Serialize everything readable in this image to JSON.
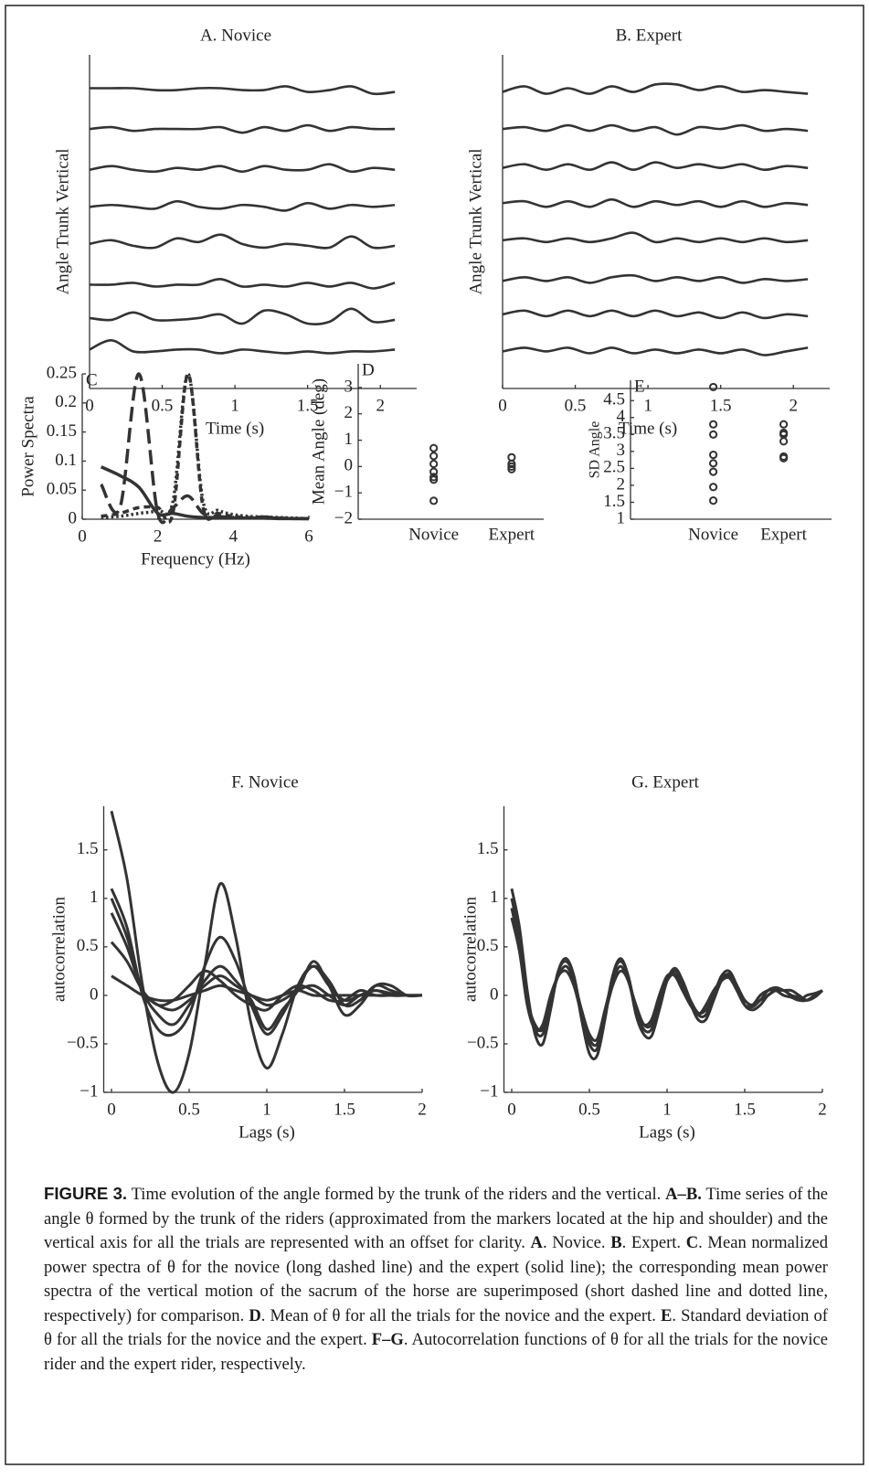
{
  "chart_data": [
    {
      "type": "line",
      "title": "A. Novice",
      "ylabel": "Angle Trunk Vertical",
      "xlabel": "Time (s)",
      "xlim": [
        0,
        2.25
      ],
      "xticks": [
        0,
        0.5,
        1,
        1.5,
        2
      ],
      "ylim": [
        0,
        9
      ],
      "color": "#333",
      "x": [
        0,
        0.15,
        0.3,
        0.45,
        0.6,
        0.75,
        0.9,
        1.05,
        1.2,
        1.35,
        1.5,
        1.65,
        1.8,
        1.95,
        2.1
      ],
      "series": [
        {
          "values": [
            8.1,
            8.1,
            8.1,
            8.05,
            8.05,
            8.1,
            8.1,
            8.05,
            8.05,
            8.15,
            8.0,
            8.05,
            8.15,
            7.95,
            8.0
          ]
        },
        {
          "values": [
            7.0,
            7.05,
            6.95,
            7.0,
            7.0,
            7.0,
            7.05,
            6.9,
            7.05,
            6.95,
            7.1,
            6.95,
            7.05,
            7.0,
            7.0
          ]
        },
        {
          "values": [
            5.9,
            6.0,
            5.9,
            5.85,
            5.95,
            5.9,
            6.0,
            5.85,
            6.0,
            5.9,
            5.9,
            6.05,
            5.85,
            5.95,
            5.9
          ]
        },
        {
          "values": [
            4.9,
            4.95,
            4.9,
            4.85,
            5.05,
            4.9,
            4.85,
            4.95,
            4.9,
            4.8,
            5.0,
            4.85,
            4.95,
            4.9,
            4.95
          ]
        },
        {
          "values": [
            3.9,
            4.0,
            3.85,
            3.8,
            4.05,
            3.95,
            4.15,
            3.9,
            3.8,
            3.9,
            3.85,
            3.8,
            4.1,
            3.8,
            3.85
          ]
        },
        {
          "values": [
            2.8,
            2.8,
            2.85,
            2.75,
            2.8,
            2.8,
            2.95,
            2.75,
            2.8,
            2.75,
            2.85,
            2.75,
            2.85,
            2.7,
            2.85
          ]
        },
        {
          "values": [
            1.9,
            1.85,
            2.05,
            1.85,
            1.85,
            1.9,
            2.0,
            1.75,
            2.1,
            2.0,
            1.75,
            1.8,
            2.15,
            1.8,
            1.85
          ]
        },
        {
          "values": [
            1.05,
            1.3,
            1.0,
            1.0,
            1.05,
            1.05,
            0.95,
            1.05,
            1.0,
            0.95,
            1.0,
            0.95,
            1.0,
            1.0,
            1.05
          ]
        }
      ]
    },
    {
      "type": "line",
      "title": "B. Expert",
      "ylabel": "Angle Trunk Vertical",
      "xlabel": "Time (s)",
      "xlim": [
        0,
        2.25
      ],
      "xticks": [
        0,
        0.5,
        1,
        1.5,
        2
      ],
      "ylim": [
        0,
        9
      ],
      "color": "#333",
      "x": [
        0,
        0.15,
        0.3,
        0.45,
        0.6,
        0.75,
        0.9,
        1.05,
        1.2,
        1.35,
        1.5,
        1.65,
        1.8,
        1.95,
        2.1
      ],
      "series": [
        {
          "values": [
            8.0,
            8.15,
            7.95,
            8.1,
            7.95,
            8.15,
            8.0,
            8.2,
            8.2,
            8.05,
            8.15,
            8.0,
            8.05,
            8.0,
            7.95
          ]
        },
        {
          "values": [
            7.0,
            7.05,
            6.95,
            7.1,
            6.95,
            7.1,
            6.95,
            7.05,
            6.85,
            7.05,
            7.0,
            7.1,
            6.95,
            7.0,
            6.95
          ]
        },
        {
          "values": [
            5.95,
            6.05,
            5.9,
            6.05,
            5.9,
            6.1,
            5.9,
            6.1,
            5.95,
            6.05,
            5.95,
            6.05,
            5.9,
            6.0,
            5.95
          ]
        },
        {
          "values": [
            5.0,
            5.05,
            4.9,
            5.05,
            4.9,
            5.1,
            4.9,
            5.05,
            4.95,
            5.05,
            4.9,
            5.05,
            4.9,
            5.0,
            4.95
          ]
        },
        {
          "values": [
            4.0,
            4.05,
            3.95,
            4.05,
            3.95,
            4.05,
            4.2,
            3.95,
            4.05,
            3.95,
            4.05,
            3.95,
            4.05,
            3.95,
            4.0
          ]
        },
        {
          "values": [
            2.9,
            3.0,
            2.9,
            3.0,
            2.85,
            3.0,
            3.05,
            2.9,
            3.0,
            2.9,
            3.0,
            2.85,
            2.95,
            2.9,
            2.95
          ]
        },
        {
          "values": [
            2.0,
            2.1,
            1.95,
            2.1,
            1.95,
            2.1,
            1.95,
            2.1,
            1.95,
            2.05,
            1.9,
            2.05,
            1.9,
            2.0,
            1.95
          ]
        },
        {
          "values": [
            1.0,
            1.1,
            1.0,
            1.1,
            0.95,
            1.1,
            0.95,
            1.05,
            0.95,
            1.05,
            0.95,
            1.05,
            0.9,
            1.0,
            1.1
          ]
        }
      ]
    },
    {
      "type": "line",
      "label": "C",
      "ylabel": "Power Spectra",
      "xlabel": "Frequency (Hz)",
      "xlim": [
        0,
        6
      ],
      "xticks": [
        0,
        2,
        4,
        6
      ],
      "ylim": [
        0,
        0.25
      ],
      "yticks": [
        0,
        0.05,
        0.1,
        0.15,
        0.2,
        0.25
      ],
      "color": "#333",
      "x": [
        0.5,
        1,
        1.5,
        2,
        2.4,
        2.8,
        3.2,
        3.6,
        4,
        4.4,
        4.8,
        5.2,
        5.6,
        6
      ],
      "series": [
        {
          "dash": "long",
          "values": [
            0.06,
            0.02,
            0.25,
            0.01,
            0.02,
            0.04,
            0.01,
            0.005,
            0.003,
            0.002,
            0.004,
            0.002,
            0.001,
            0.001
          ]
        },
        {
          "dash": "solid",
          "values": [
            0.09,
            0.075,
            0.055,
            0.01,
            0.01,
            0.005,
            0.003,
            0.003,
            0.002,
            0.002,
            0.002,
            0.001,
            0.001,
            0.001
          ]
        },
        {
          "dash": "short",
          "values": [
            0.005,
            0.01,
            0.02,
            0.02,
            0.01,
            0.25,
            0.02,
            0.01,
            0.005,
            0.003,
            0.002,
            0.002,
            0.001,
            0.001
          ]
        },
        {
          "dash": "dotted",
          "values": [
            0.003,
            0.005,
            0.01,
            0.015,
            0.03,
            0.25,
            0.03,
            0.015,
            0.008,
            0.005,
            0.004,
            0.003,
            0.002,
            0.001
          ]
        }
      ]
    },
    {
      "type": "scatter",
      "label": "D",
      "ylabel": "Mean Angle (deg)",
      "color": "#333",
      "categories": [
        "Novice",
        "Expert"
      ],
      "ylim": [
        -2,
        3.9
      ],
      "yticks": [
        {
          "value": -2,
          "label": "−2"
        },
        {
          "value": -1,
          "label": "−1"
        },
        0,
        1,
        2,
        3
      ],
      "values": [
        [
          0.7,
          0.4,
          0.1,
          -0.2,
          -0.4,
          -0.5,
          -1.3
        ],
        [
          0.35,
          0.1,
          0,
          -0.1
        ]
      ]
    },
    {
      "type": "scatter",
      "label": "E",
      "ylabel": "SD Angle",
      "color": "#333",
      "categories": [
        "Novice",
        "Expert"
      ],
      "ylim": [
        1,
        5.1
      ],
      "yticks": [
        1,
        1.5,
        2,
        2.5,
        3,
        3.5,
        4,
        4.5
      ],
      "values": [
        [
          4.9,
          3.8,
          3.5,
          2.9,
          2.65,
          2.4,
          1.95,
          1.55
        ],
        [
          3.8,
          3.55,
          3.5,
          3.3,
          2.85,
          2.8
        ]
      ]
    },
    {
      "type": "line",
      "title": "F. Novice",
      "ylabel": "autocorrelation",
      "xlabel": "Lags (s)",
      "xlim": [
        -0.05,
        2
      ],
      "xticks": [
        0,
        0.5,
        1,
        1.5,
        2
      ],
      "ylim": [
        -1,
        1.95
      ],
      "yticks": [
        {
          "value": -1,
          "label": "−1"
        },
        {
          "value": -0.5,
          "label": "−0.5"
        },
        0,
        0.5,
        1,
        1.5
      ],
      "color": "#333",
      "x": [
        0,
        0.1,
        0.2,
        0.3,
        0.4,
        0.5,
        0.6,
        0.7,
        0.8,
        0.9,
        1,
        1.1,
        1.2,
        1.3,
        1.4,
        1.5,
        1.6,
        1.7,
        1.8,
        1.9,
        2
      ],
      "series": [
        {
          "values": [
            1.9,
            1.2,
            0.1,
            -0.7,
            -1.0,
            -0.6,
            0.3,
            1.15,
            0.6,
            -0.3,
            -0.75,
            -0.4,
            0.1,
            0.3,
            0.1,
            -0.05,
            0,
            0.05,
            0.02,
            0,
            0
          ]
        },
        {
          "values": [
            1.1,
            0.7,
            0,
            -0.35,
            -0.4,
            -0.2,
            0.3,
            0.6,
            0.35,
            -0.1,
            -0.4,
            -0.2,
            0.1,
            0.3,
            0.15,
            -0.1,
            -0.05,
            0.1,
            0.05,
            0,
            0
          ]
        },
        {
          "values": [
            1.0,
            0.6,
            0.05,
            -0.2,
            -0.3,
            -0.1,
            0.15,
            0.3,
            0.15,
            -0.05,
            -0.35,
            -0.15,
            0.05,
            0.35,
            0.1,
            -0.2,
            -0.1,
            0.1,
            0.1,
            0,
            0
          ]
        },
        {
          "values": [
            0.85,
            0.5,
            0.05,
            -0.1,
            -0.15,
            -0.05,
            0.1,
            0.2,
            0.1,
            0,
            -0.1,
            -0.05,
            0.05,
            0.1,
            0,
            -0.1,
            0,
            0.05,
            0,
            0,
            0
          ]
        },
        {
          "values": [
            0.55,
            0.35,
            0.05,
            -0.1,
            -0.05,
            0.1,
            0.25,
            0.15,
            0,
            -0.1,
            -0.15,
            0,
            0.1,
            0.05,
            -0.05,
            -0.05,
            0.05,
            0,
            0,
            0,
            0
          ]
        },
        {
          "values": [
            0.2,
            0.1,
            0,
            -0.05,
            -0.05,
            0,
            0.05,
            0.1,
            0.05,
            0,
            -0.05,
            0,
            0.05,
            0,
            0,
            0,
            0,
            0,
            0,
            0,
            0
          ]
        }
      ]
    },
    {
      "type": "line",
      "title": "G. Expert",
      "ylabel": "autocorrelation",
      "xlabel": "Lags (s)",
      "xlim": [
        -0.05,
        2
      ],
      "xticks": [
        0,
        0.5,
        1,
        1.5,
        2
      ],
      "ylim": [
        -1,
        1.95
      ],
      "yticks": [
        {
          "value": -1,
          "label": "−1"
        },
        {
          "value": -0.5,
          "label": "−0.5"
        },
        0,
        0.5,
        1,
        1.5
      ],
      "color": "#333",
      "x": [
        0,
        0.05,
        0.1,
        0.15,
        0.2,
        0.25,
        0.3,
        0.35,
        0.4,
        0.45,
        0.5,
        0.55,
        0.6,
        0.65,
        0.7,
        0.75,
        0.8,
        0.85,
        0.9,
        0.95,
        1,
        1.05,
        1.1,
        1.15,
        1.2,
        1.25,
        1.3,
        1.35,
        1.4,
        1.45,
        1.5,
        1.55,
        1.6,
        1.65,
        1.7,
        1.75,
        1.8,
        1.85,
        1.9,
        1.95,
        2
      ],
      "series": [
        {
          "values": [
            1.0,
            0.6,
            0,
            -0.35,
            -0.4,
            -0.1,
            0.25,
            0.35,
            0.2,
            -0.2,
            -0.5,
            -0.55,
            -0.2,
            0.2,
            0.35,
            0.2,
            -0.15,
            -0.35,
            -0.35,
            -0.1,
            0.15,
            0.25,
            0.15,
            -0.05,
            -0.2,
            -0.2,
            0,
            0.2,
            0.25,
            0.1,
            -0.1,
            -0.15,
            -0.1,
            0,
            0.05,
            0.05,
            0.05,
            0,
            -0.05,
            0,
            0.05
          ]
        },
        {
          "values": [
            1.1,
            0.7,
            0.05,
            -0.4,
            -0.5,
            -0.15,
            0.25,
            0.38,
            0.2,
            -0.25,
            -0.6,
            -0.62,
            -0.25,
            0.2,
            0.38,
            0.2,
            -0.2,
            -0.4,
            -0.42,
            -0.15,
            0.15,
            0.28,
            0.15,
            -0.08,
            -0.25,
            -0.25,
            -0.05,
            0.15,
            0.22,
            0.1,
            -0.05,
            -0.1,
            -0.05,
            0.05,
            0.08,
            0.05,
            0,
            -0.05,
            -0.05,
            0,
            0.05
          ]
        },
        {
          "values": [
            0.9,
            0.5,
            -0.05,
            -0.3,
            -0.35,
            -0.05,
            0.2,
            0.3,
            0.15,
            -0.15,
            -0.4,
            -0.45,
            -0.15,
            0.15,
            0.3,
            0.15,
            -0.1,
            -0.3,
            -0.3,
            -0.05,
            0.15,
            0.22,
            0.1,
            -0.05,
            -0.18,
            -0.15,
            0,
            0.18,
            0.2,
            0.05,
            -0.1,
            -0.12,
            -0.05,
            0,
            0.05,
            0.05,
            0,
            -0.02,
            -0.05,
            -0.02,
            0.05
          ]
        },
        {
          "values": [
            0.8,
            0.45,
            -0.1,
            -0.35,
            -0.3,
            0,
            0.2,
            0.25,
            0.1,
            -0.2,
            -0.45,
            -0.5,
            -0.2,
            0.1,
            0.25,
            0.15,
            -0.15,
            -0.3,
            -0.25,
            0,
            0.2,
            0.2,
            0.05,
            -0.1,
            -0.2,
            -0.1,
            0.05,
            0.15,
            0.18,
            0.05,
            -0.1,
            -0.1,
            0,
            0.05,
            0.05,
            0,
            -0.02,
            -0.05,
            0,
            0.02,
            0.05
          ]
        }
      ]
    }
  ],
  "caption": [
    {
      "text": "FIGURE 3.",
      "sans": true
    },
    {
      "text": " Time evolution of the angle formed by the trunk of the riders and the vertical. "
    },
    {
      "text": "A–B.",
      "bold": true
    },
    {
      "text": " Time series of the angle θ formed by the trunk of the riders (approximated from the markers located at the hip and shoulder) and the vertical axis for all the trials are represented with an offset for clarity. "
    },
    {
      "text": "A",
      "bold": true
    },
    {
      "text": ". Novice. "
    },
    {
      "text": "B",
      "bold": true
    },
    {
      "text": ". Expert. "
    },
    {
      "text": "C",
      "bold": true
    },
    {
      "text": ". Mean normalized power spectra of θ for the novice (long dashed line) and the expert (solid line); the corresponding mean power spectra of the vertical motion of the sacrum of the horse are superimposed (short dashed line and dotted line, respectively) for comparison. "
    },
    {
      "text": "D",
      "bold": true
    },
    {
      "text": ". Mean of θ for all the trials for the novice and the expert. "
    },
    {
      "text": "E",
      "bold": true
    },
    {
      "text": ". Standard deviation of θ for all the trials for the novice and the expert. "
    },
    {
      "text": "F–G",
      "bold": true
    },
    {
      "text": ". Autocorrelation functions of θ for all the trials for the novice rider and the expert rider, respectively."
    }
  ]
}
